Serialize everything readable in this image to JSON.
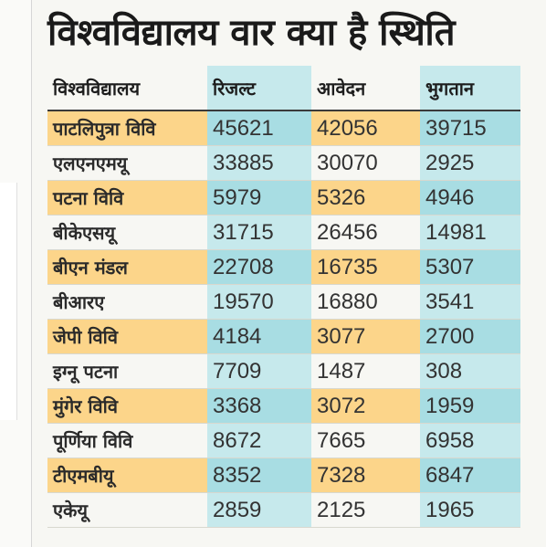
{
  "title": "विश्वविद्यालय वार क्या है स्थिति",
  "headers": [
    "विश्वविद्यालय",
    "रिजल्ट",
    "आवेदन",
    "भुगतान"
  ],
  "rows": [
    {
      "name": "पाटलिपुत्रा विवि",
      "result": "45621",
      "applications": "42056",
      "payment": "39715"
    },
    {
      "name": "एलएनएमयू",
      "result": "33885",
      "applications": "30070",
      "payment": "2925"
    },
    {
      "name": "पटना विवि",
      "result": "5979",
      "applications": "5326",
      "payment": "4946"
    },
    {
      "name": "बीकेएसयू",
      "result": "31715",
      "applications": "26456",
      "payment": "14981"
    },
    {
      "name": "बीएन मंडल",
      "result": "22708",
      "applications": "16735",
      "payment": "5307"
    },
    {
      "name": "बीआरए",
      "result": "19570",
      "applications": "16880",
      "payment": "3541"
    },
    {
      "name": "जेपी विवि",
      "result": "4184",
      "applications": "3077",
      "payment": "2700"
    },
    {
      "name": "इग्नू पटना",
      "result": "7709",
      "applications": "1487",
      "payment": "308"
    },
    {
      "name": "मुंगेर विवि",
      "result": "3368",
      "applications": "3072",
      "payment": "1959"
    },
    {
      "name": "पूर्णिया विवि",
      "result": "8672",
      "applications": "7665",
      "payment": "6958"
    },
    {
      "name": "टीएमबीयू",
      "result": "8352",
      "applications": "7328",
      "payment": "6847"
    },
    {
      "name": "एकेयू",
      "result": "2859",
      "applications": "2125",
      "payment": "1965"
    }
  ],
  "colors": {
    "highlight_row": "#fcd58a",
    "cyan_column": "#c6e9ec"
  }
}
